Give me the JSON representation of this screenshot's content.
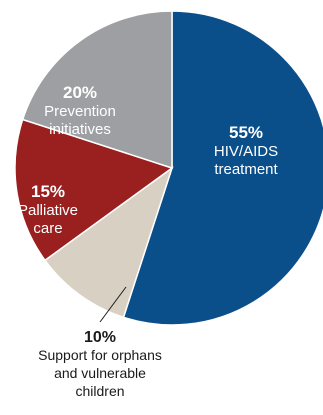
{
  "chart_data": {
    "type": "pie",
    "slices": [
      {
        "value": 55,
        "percent_label": "55%",
        "label_lines": [
          "HIV/AIDS",
          "treatment"
        ],
        "color": "#0b4f8a",
        "text_color": "#ffffff"
      },
      {
        "value": 10,
        "percent_label": "10%",
        "label_lines": [
          "Support for orphans",
          "and vulnerable",
          "children"
        ],
        "color": "#d8d0c2",
        "text_color": "#1a1a1a"
      },
      {
        "value": 15,
        "percent_label": "15%",
        "label_lines": [
          "Palliative",
          "care"
        ],
        "color": "#9a1f1f",
        "text_color": "#ffffff"
      },
      {
        "value": 20,
        "percent_label": "20%",
        "label_lines": [
          "Prevention",
          "initiatives"
        ],
        "color": "#9d9fa2",
        "text_color": "#ffffff"
      }
    ]
  }
}
